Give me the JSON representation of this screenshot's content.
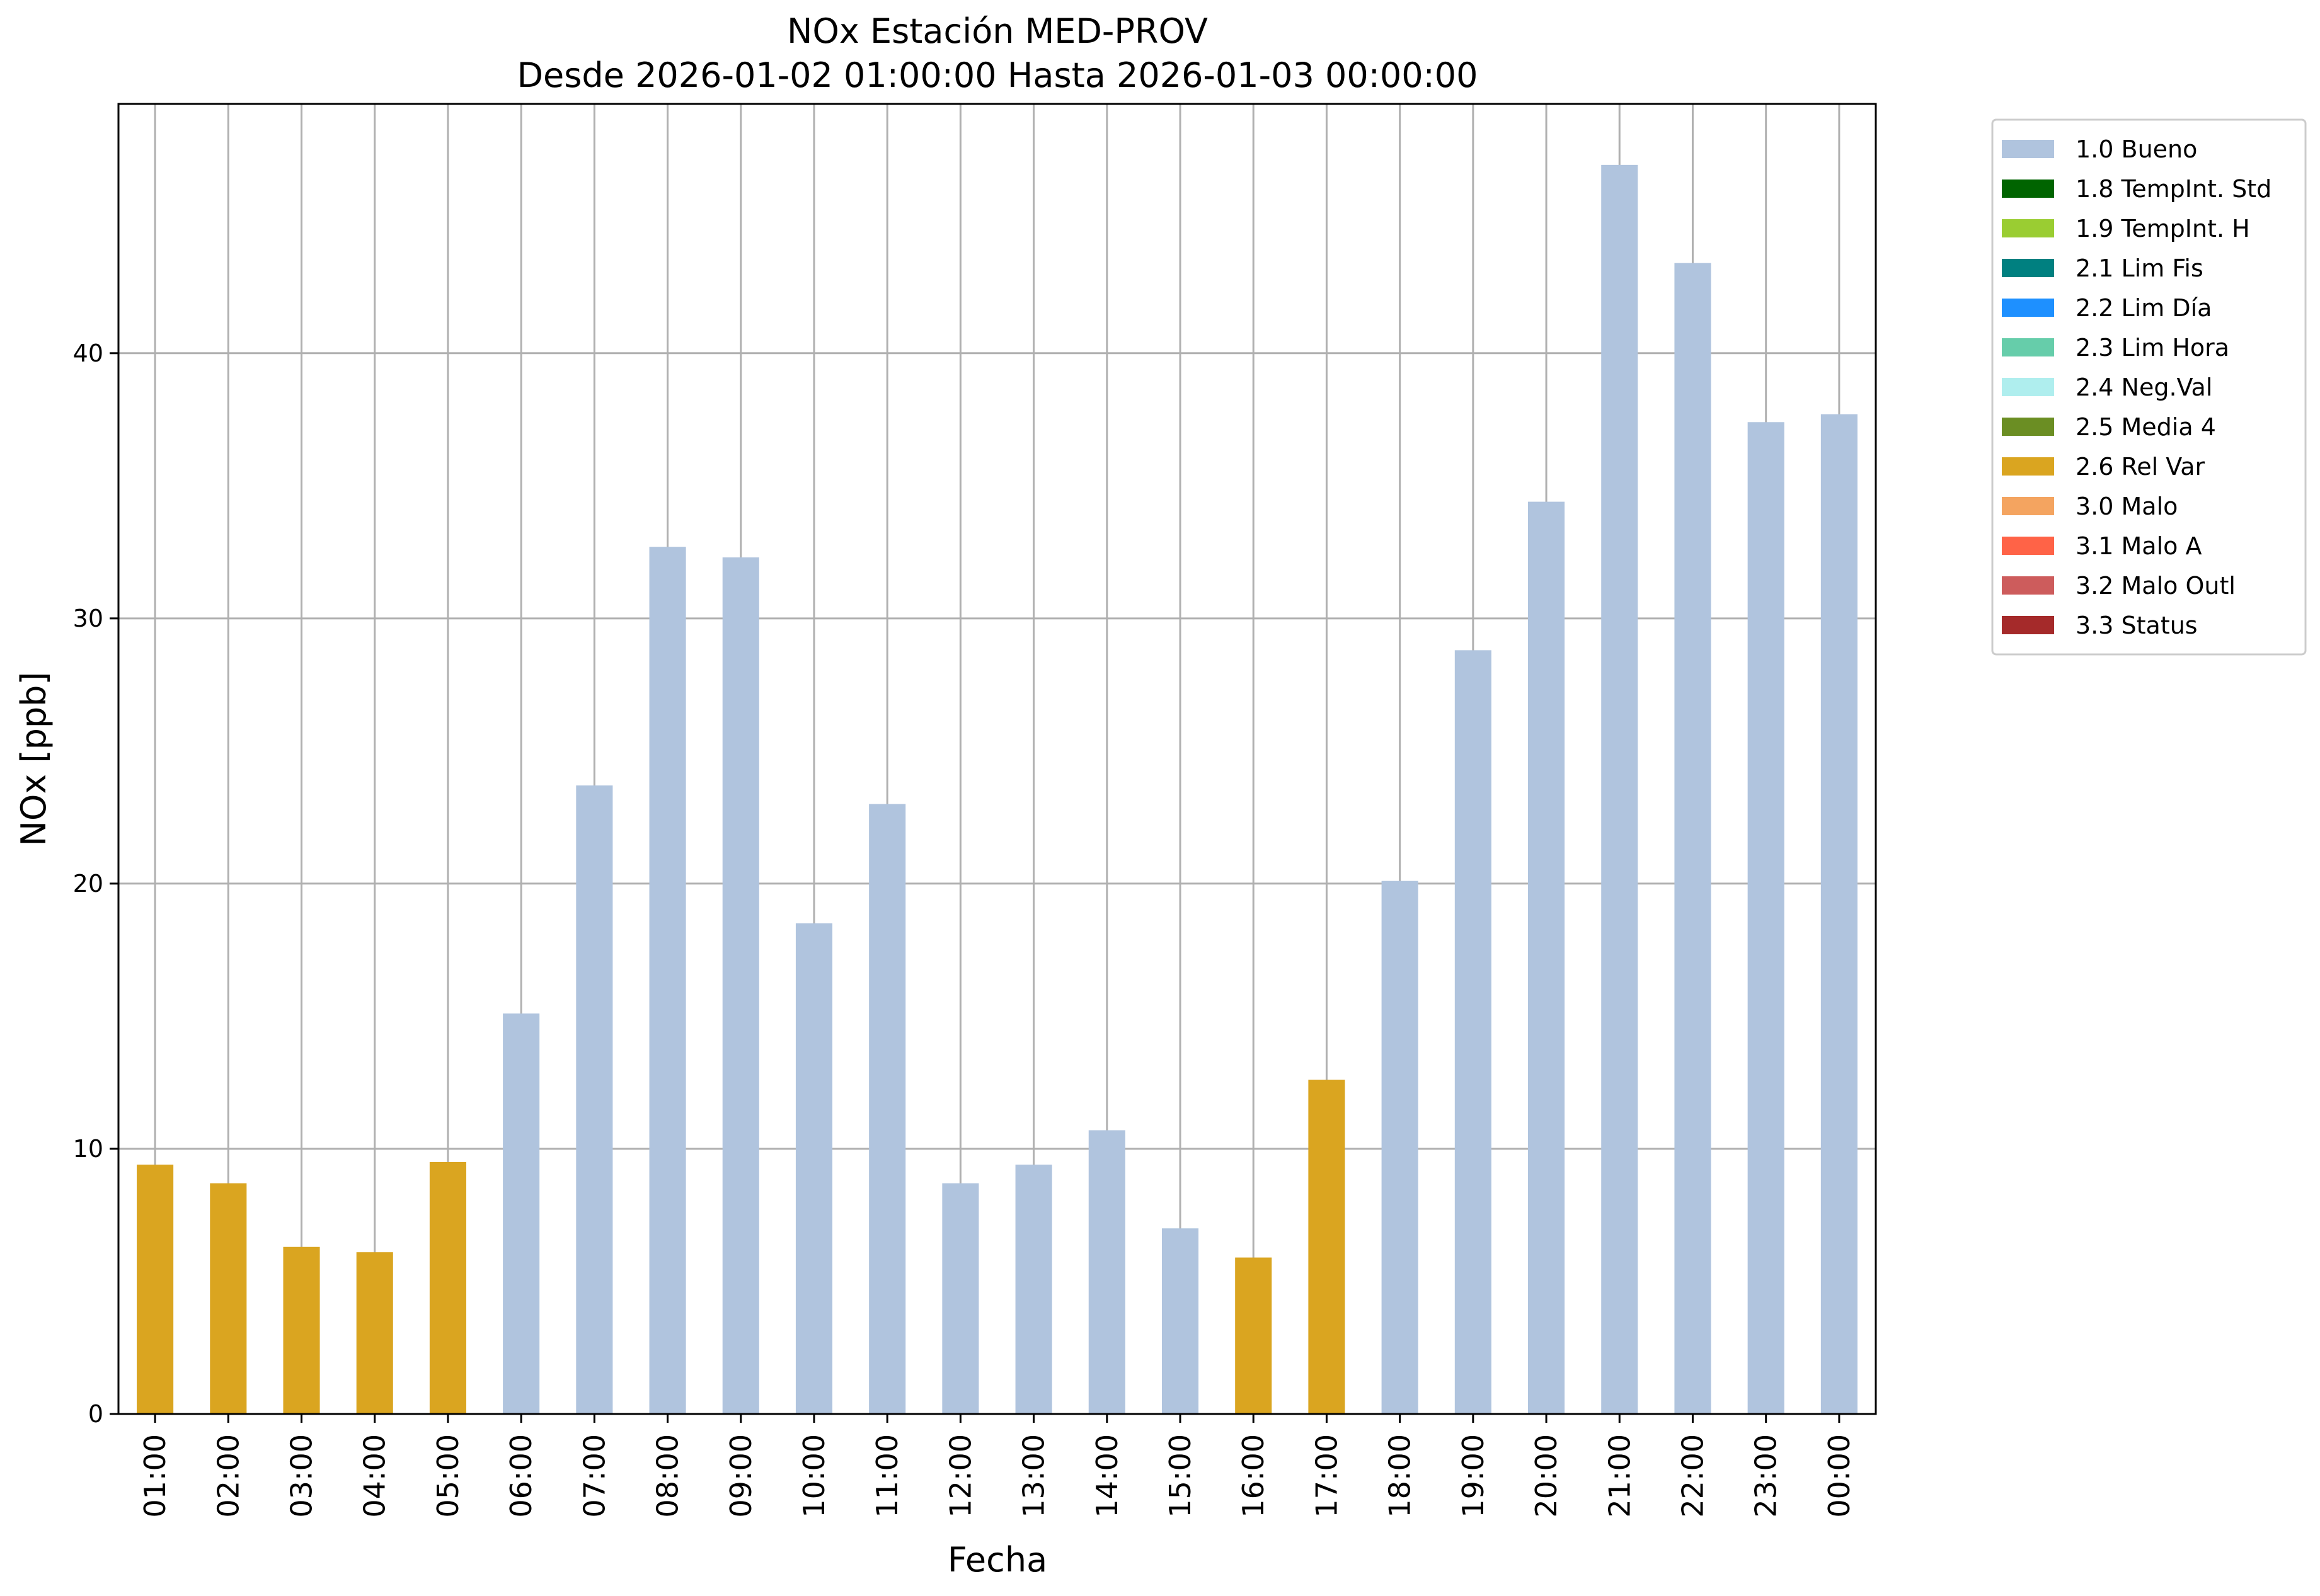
{
  "chart_data": {
    "type": "bar",
    "title": "NOx Estación MED-PROV",
    "subtitle": "Desde 2026-01-02 01:00:00 Hasta 2026-01-03 00:00:00",
    "xlabel": "Fecha",
    "ylabel": "NOx [ppb]",
    "ylim": [
      0,
      49.4
    ],
    "yticks": [
      0,
      10,
      20,
      30,
      40
    ],
    "grid": true,
    "legend_position": "outside-top-right",
    "categories": [
      "01:00",
      "02:00",
      "03:00",
      "04:00",
      "05:00",
      "06:00",
      "07:00",
      "08:00",
      "09:00",
      "10:00",
      "11:00",
      "12:00",
      "13:00",
      "14:00",
      "15:00",
      "16:00",
      "17:00",
      "18:00",
      "19:00",
      "20:00",
      "21:00",
      "22:00",
      "23:00",
      "00:00"
    ],
    "values": [
      9.4,
      8.7,
      6.3,
      6.1,
      9.5,
      15.1,
      23.7,
      32.7,
      32.3,
      18.5,
      23.0,
      8.7,
      9.4,
      10.7,
      7.0,
      5.9,
      12.6,
      20.1,
      28.8,
      34.4,
      47.1,
      43.4,
      37.4,
      37.7
    ],
    "flags": [
      "2.6",
      "2.6",
      "2.6",
      "2.6",
      "2.6",
      "1.0",
      "1.0",
      "1.0",
      "1.0",
      "1.0",
      "1.0",
      "1.0",
      "1.0",
      "1.0",
      "1.0",
      "2.6",
      "2.6",
      "1.0",
      "1.0",
      "1.0",
      "1.0",
      "1.0",
      "1.0",
      "1.0"
    ],
    "legend": [
      {
        "code": "1.0",
        "label": "1.0 Bueno",
        "color": "#b0c4de"
      },
      {
        "code": "1.8",
        "label": "1.8 TempInt. Std",
        "color": "#006400"
      },
      {
        "code": "1.9",
        "label": "1.9 TempInt. H",
        "color": "#9acd32"
      },
      {
        "code": "2.1",
        "label": "2.1 Lim Fis",
        "color": "#008080"
      },
      {
        "code": "2.2",
        "label": "2.2 Lim Día",
        "color": "#1e90ff"
      },
      {
        "code": "2.3",
        "label": "2.3 Lim Hora",
        "color": "#66cdaa"
      },
      {
        "code": "2.4",
        "label": "2.4 Neg.Val",
        "color": "#afeeee"
      },
      {
        "code": "2.5",
        "label": "2.5 Media 4",
        "color": "#6b8e23"
      },
      {
        "code": "2.6",
        "label": "2.6 Rel Var",
        "color": "#daa520"
      },
      {
        "code": "3.0",
        "label": "3.0 Malo",
        "color": "#f4a460"
      },
      {
        "code": "3.1",
        "label": "3.1 Malo A",
        "color": "#ff6347"
      },
      {
        "code": "3.2",
        "label": "3.2 Malo Outl",
        "color": "#cd5c5c"
      },
      {
        "code": "3.3",
        "label": "3.3 Status",
        "color": "#a52a2a"
      }
    ]
  }
}
